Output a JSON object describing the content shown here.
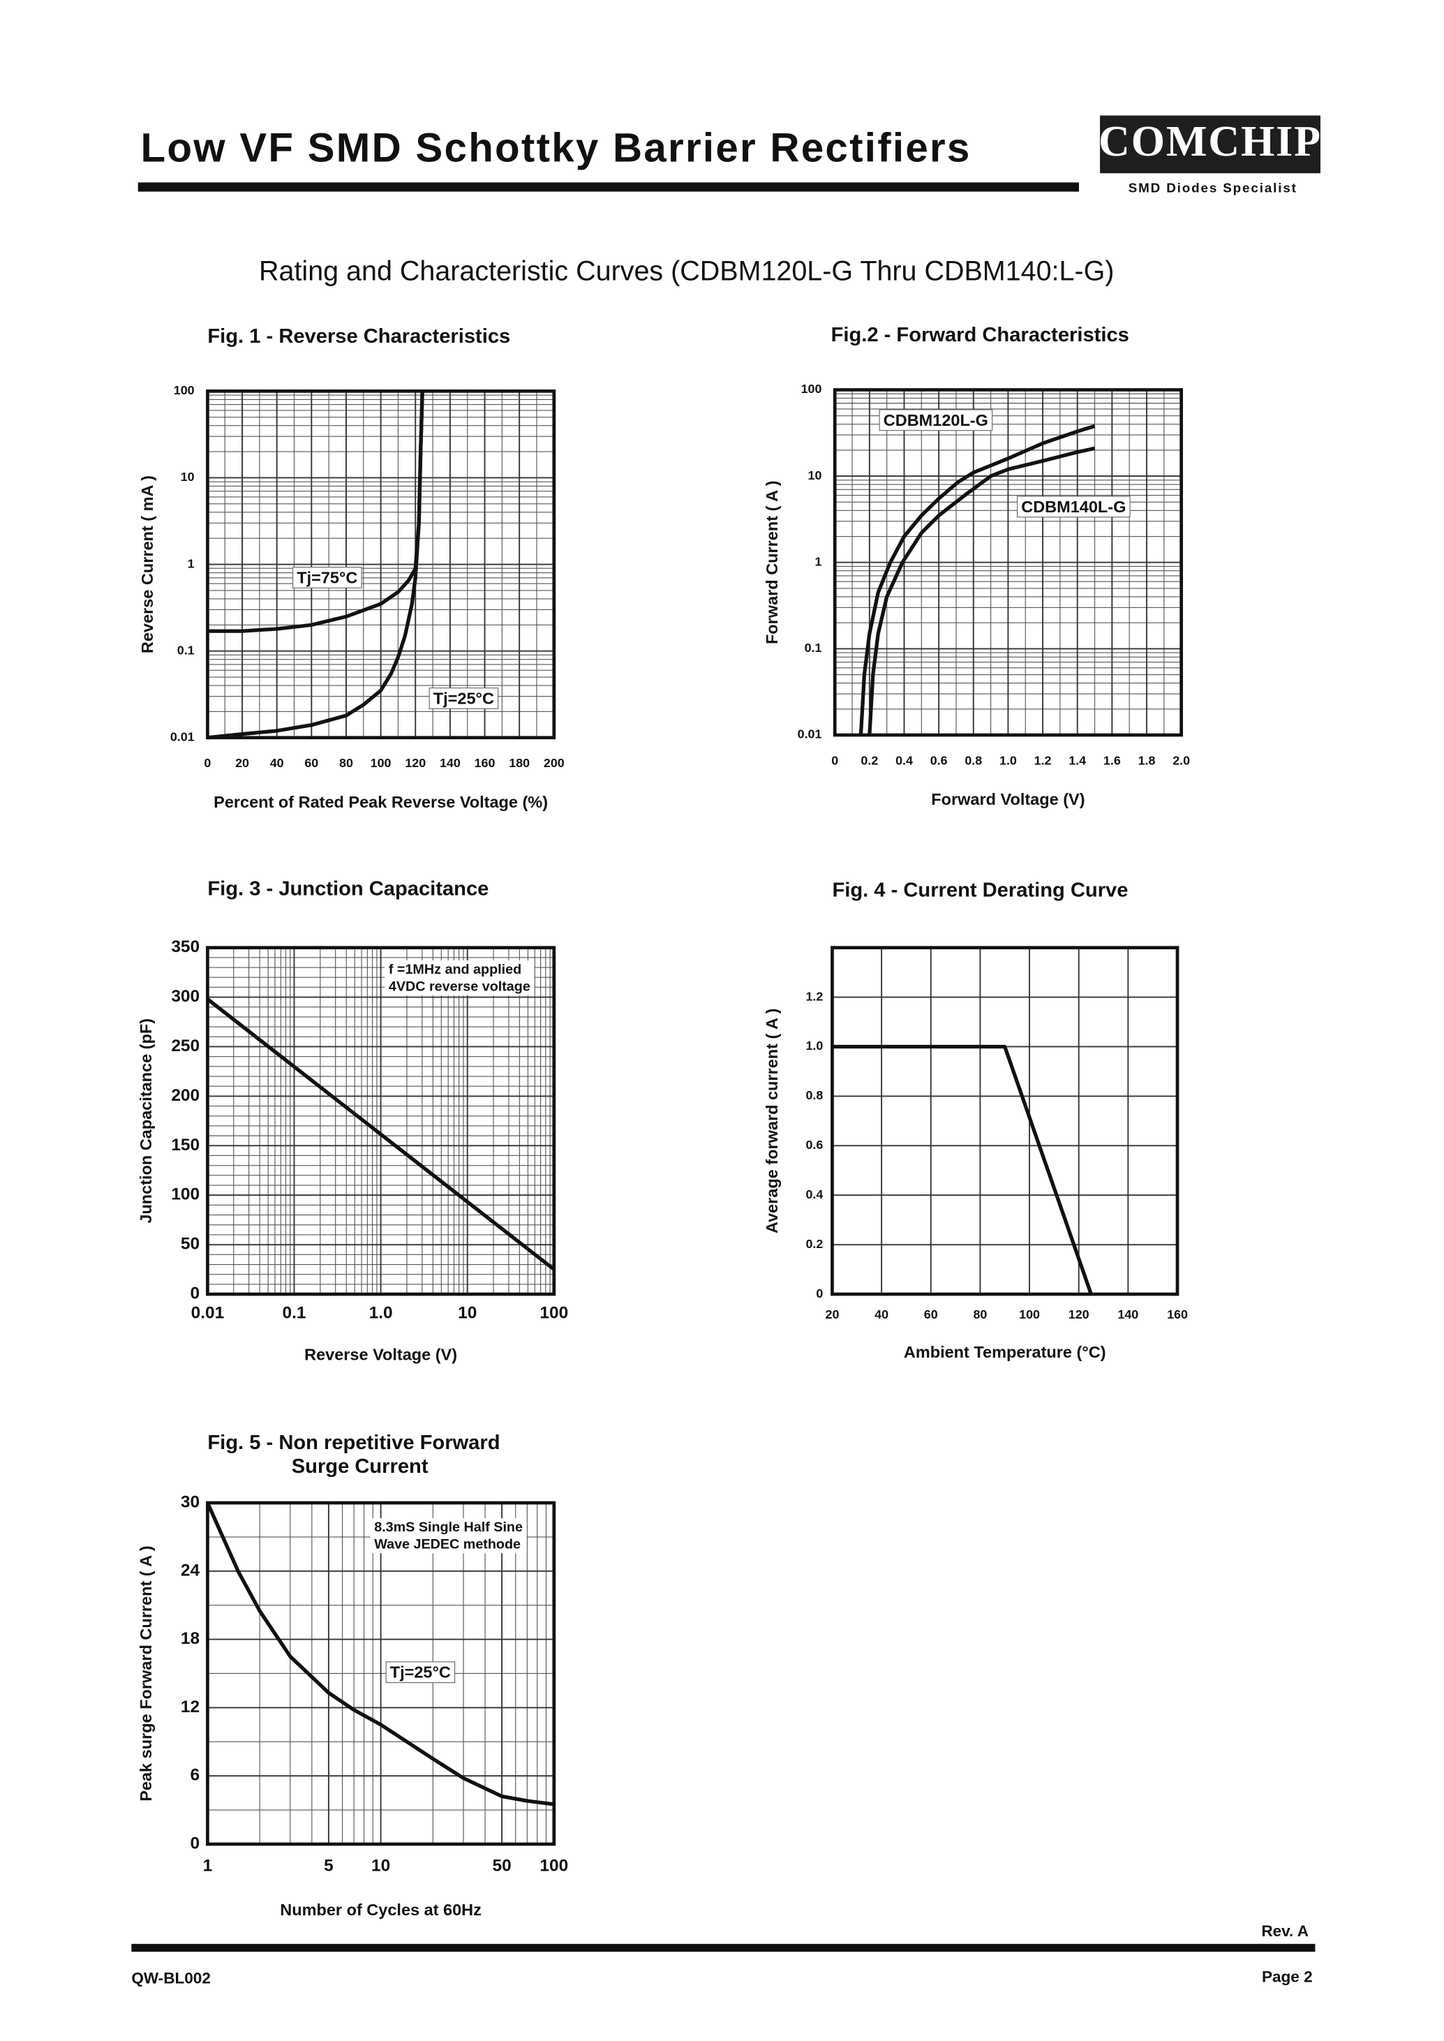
{
  "header": {
    "title": "Low VF SMD Schottky Barrier Rectifiers",
    "logo": "COMCHIP",
    "tagline": "SMD Diodes Specialist"
  },
  "subtitle": "Rating and Characteristic Curves (CDBM120L-G Thru CDBM140:L-G)",
  "chart_data": [
    {
      "type": "line",
      "title": "Fig. 1 -  Reverse Characteristics",
      "xlabel": "Percent of Rated Peak Reverse Voltage (%)",
      "ylabel": "Reverse Current ( mA )",
      "xlim": [
        0,
        200
      ],
      "xticks": [
        0,
        20,
        40,
        60,
        80,
        100,
        120,
        140,
        160,
        180,
        200
      ],
      "ylim": [
        0.01,
        100
      ],
      "ylog": true,
      "yticks": [
        0.01,
        0.1,
        1,
        10,
        100
      ],
      "grid": true,
      "color": "#111111",
      "series": [
        {
          "name": "Tj=75°C",
          "x": [
            0,
            20,
            40,
            60,
            80,
            100,
            110,
            116,
            120,
            122,
            123,
            124
          ],
          "values": [
            0.17,
            0.17,
            0.18,
            0.2,
            0.25,
            0.35,
            0.48,
            0.65,
            0.9,
            3,
            20,
            100
          ]
        },
        {
          "name": "Tj=25°C",
          "x": [
            0,
            20,
            40,
            60,
            80,
            90,
            100,
            106,
            110,
            114,
            118,
            120,
            122,
            123,
            124
          ],
          "values": [
            0.01,
            0.011,
            0.012,
            0.014,
            0.018,
            0.024,
            0.035,
            0.055,
            0.085,
            0.15,
            0.35,
            0.7,
            3,
            20,
            100
          ]
        }
      ]
    },
    {
      "type": "line",
      "title": "Fig.2 -  Forward Characteristics",
      "xlabel": "Forward Voltage (V)",
      "ylabel": "Forward Current ( A )",
      "xlim": [
        0,
        2
      ],
      "xticks": [
        0,
        0.2,
        0.4,
        0.6,
        0.8,
        {
          "value": 1,
          "label": "1.0"
        },
        1.2,
        1.4,
        1.6,
        1.8,
        {
          "value": 2,
          "label": "2.0"
        }
      ],
      "ylim": [
        0.01,
        100
      ],
      "ylog": true,
      "yticks": [
        0.01,
        0.1,
        1,
        10,
        100
      ],
      "grid": true,
      "color": "#111111",
      "series": [
        {
          "name": "CDBM120L-G",
          "x": [
            0.15,
            0.17,
            0.2,
            0.25,
            0.32,
            0.4,
            0.5,
            0.6,
            0.71,
            0.8,
            1,
            1.2,
            1.4,
            1.5
          ],
          "values": [
            0.01,
            0.05,
            0.15,
            0.45,
            1,
            2,
            3.5,
            5.5,
            8.5,
            11,
            16,
            24,
            33,
            38
          ]
        },
        {
          "name": "CDBM140L-G",
          "x": [
            0.2,
            0.22,
            0.25,
            0.3,
            0.39,
            0.5,
            0.6,
            0.75,
            0.9,
            1,
            1.2,
            1.4,
            1.5
          ],
          "values": [
            0.01,
            0.05,
            0.15,
            0.4,
            1,
            2.2,
            3.5,
            6,
            10,
            12,
            15,
            19,
            21
          ]
        }
      ]
    },
    {
      "type": "line",
      "title": "Fig. 3 -  Junction Capacitance",
      "xlabel": "Reverse Voltage (V)",
      "ylabel": "Junction Capacitance  (pF)",
      "xlim": [
        0.01,
        100
      ],
      "xlog": true,
      "xticks": [
        0.01,
        0.1,
        {
          "value": 1,
          "label": "1.0"
        },
        10,
        100
      ],
      "ylim": [
        0,
        350
      ],
      "yticks": [
        0,
        50,
        100,
        150,
        200,
        250,
        300,
        350
      ],
      "grid": true,
      "color": "#111111",
      "annotations": [
        "f =1MHz and applied",
        "4VDC reverse voltage"
      ],
      "series": [
        {
          "x": [
            0.01,
            100
          ],
          "values": [
            298,
            25
          ]
        }
      ]
    },
    {
      "type": "line",
      "title": "Fig. 4 - Current Derating Curve",
      "xlabel": "Ambient Temperature (°C)",
      "ylabel": "Average forward current ( A )",
      "xlim": [
        20,
        160
      ],
      "xticks": [
        20,
        40,
        60,
        80,
        100,
        120,
        140,
        160
      ],
      "ylim": [
        0,
        1.4
      ],
      "yticks": [
        0,
        0.2,
        0.4,
        0.6,
        0.8,
        {
          "value": 1,
          "label": "1.0"
        },
        1.2
      ],
      "grid": true,
      "color": "#111111",
      "series": [
        {
          "x": [
            20,
            90,
            125
          ],
          "values": [
            1,
            1,
            0
          ]
        }
      ]
    },
    {
      "type": "line",
      "title": [
        "Fig. 5 -  Non repetitive Forward",
        "Surge Current"
      ],
      "xlabel": "Number of Cycles at 60Hz",
      "ylabel": "Peak surge Forward Current ( A )",
      "xlim": [
        1,
        100
      ],
      "xlog": true,
      "xticks": [
        1,
        5,
        10,
        50,
        100
      ],
      "ylim": [
        0,
        30
      ],
      "yticks": [
        0,
        6,
        12,
        18,
        24,
        30
      ],
      "grid": true,
      "color": "#111111",
      "annotations": [
        "8.3mS Single Half Sine",
        "Wave JEDEC methode"
      ],
      "series": [
        {
          "name": "Tj=25°C",
          "x": [
            1,
            1.5,
            2,
            3,
            5,
            7,
            10,
            20,
            30,
            50,
            70,
            100
          ],
          "values": [
            30,
            24,
            20.5,
            16.5,
            13.3,
            11.8,
            10.5,
            7.5,
            5.8,
            4.2,
            3.8,
            3.5
          ]
        }
      ]
    }
  ],
  "footer": {
    "revision": "Rev. A",
    "document": "QW-BL002",
    "page": "Page 2"
  }
}
